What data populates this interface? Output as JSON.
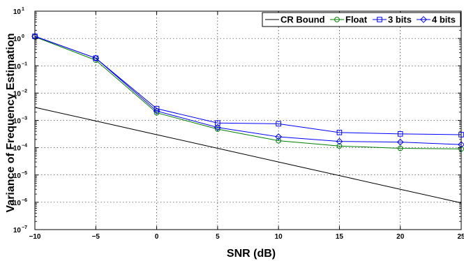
{
  "chart_data": {
    "type": "line",
    "xlabel": "SNR (dB)",
    "ylabel": "Variance of Frequency Estimation",
    "x_ticks": [
      -10,
      -5,
      0,
      5,
      10,
      15,
      20,
      25
    ],
    "xlim": [
      -10,
      25
    ],
    "ylim": [
      1e-07,
      10
    ],
    "y_scale": "log",
    "y_ticks": [
      {
        "base": "10",
        "exp": "1",
        "value": 10
      },
      {
        "base": "10",
        "exp": "0",
        "value": 1
      },
      {
        "base": "10",
        "exp": "−1",
        "value": 0.1
      },
      {
        "base": "10",
        "exp": "−2",
        "value": 0.01
      },
      {
        "base": "10",
        "exp": "−3",
        "value": 0.001
      },
      {
        "base": "10",
        "exp": "−4",
        "value": 0.0001
      },
      {
        "base": "10",
        "exp": "−5",
        "value": 1e-05
      },
      {
        "base": "10",
        "exp": "−6",
        "value": 1e-06
      },
      {
        "base": "10",
        "exp": "−7",
        "value": 1e-07
      }
    ],
    "grid": true,
    "legend_position": "top-right",
    "series": [
      {
        "name": "CR Bound",
        "color": "#000000",
        "marker": "none",
        "x": [
          -10,
          -5,
          0,
          5,
          10,
          15,
          20,
          25
        ],
        "y": [
          0.003,
          0.00095,
          0.0003,
          9.5e-05,
          3e-05,
          9.5e-06,
          3e-06,
          9.5e-07
        ]
      },
      {
        "name": "Float",
        "color": "#007f00",
        "marker": "circle",
        "x": [
          -10,
          -5,
          0,
          5,
          10,
          15,
          20,
          25
        ],
        "y": [
          1.15,
          0.16,
          0.0019,
          0.00048,
          0.00018,
          0.000115,
          9.5e-05,
          9e-05
        ]
      },
      {
        "name": "3 bits",
        "color": "#0000ff",
        "marker": "square",
        "x": [
          -10,
          -5,
          0,
          5,
          10,
          15,
          20,
          25
        ],
        "y": [
          1.2,
          0.19,
          0.0027,
          0.0008,
          0.00075,
          0.00036,
          0.00032,
          0.0003
        ]
      },
      {
        "name": "4 bits",
        "color": "#0000ff",
        "marker": "diamond",
        "x": [
          -10,
          -5,
          0,
          5,
          10,
          15,
          20,
          25
        ],
        "y": [
          1.2,
          0.19,
          0.0022,
          0.00055,
          0.00025,
          0.00017,
          0.00016,
          0.00013
        ]
      }
    ]
  }
}
